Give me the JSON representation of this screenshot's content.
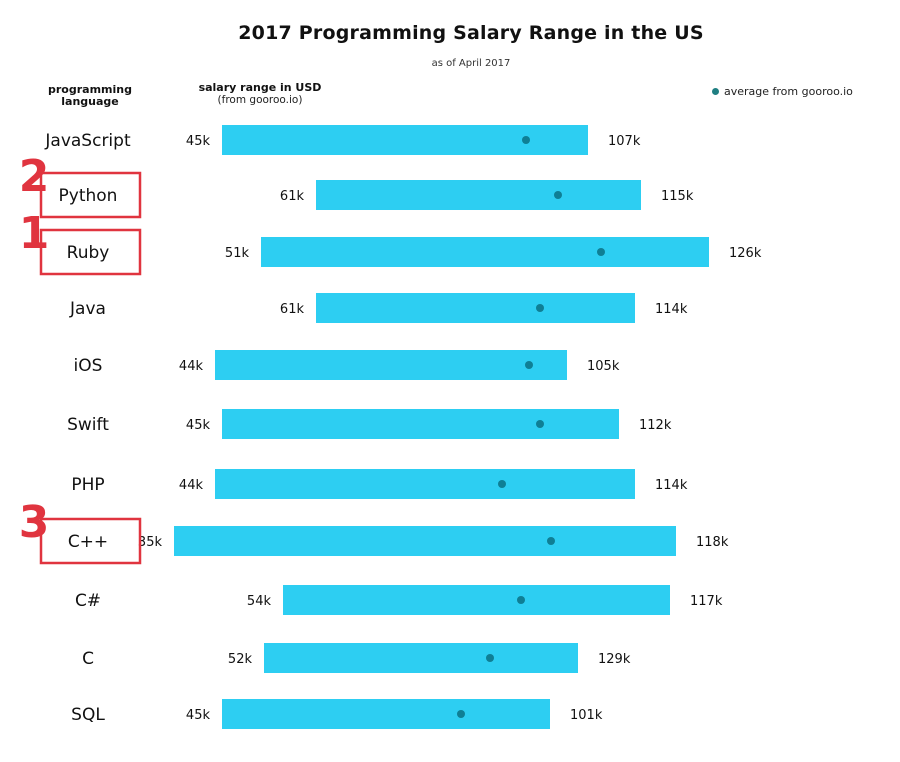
{
  "chart_data": {
    "type": "bar",
    "subtype": "range (floating horizontal bars with average dot)",
    "title": "2017 Programming Salary Range in the US",
    "subtitle": "as of April 2017",
    "column_headers": {
      "language": [
        "programming",
        "language"
      ],
      "salary": [
        "salary range in USD",
        "(from gooroo.io)"
      ]
    },
    "legend": {
      "label": "average from gooroo.io",
      "position": "top-right"
    },
    "units": "USD (thousands)",
    "categories": [
      "JavaScript",
      "Python",
      "Ruby",
      "Java",
      "iOS",
      "Swift",
      "PHP",
      "C++",
      "C#",
      "C",
      "SQL"
    ],
    "series": [
      {
        "name": "min",
        "values": [
          45,
          61,
          51,
          61,
          44,
          45,
          44,
          35,
          54,
          52,
          45
        ]
      },
      {
        "name": "max",
        "values": [
          107,
          115,
          126,
          114,
          105,
          112,
          114,
          118,
          117,
          129,
          101
        ]
      }
    ],
    "min_labels": [
      "45k",
      "61k",
      "51k",
      "61k",
      "44k",
      "45k",
      "44k",
      "35k",
      "54k",
      "52k",
      "45k"
    ],
    "max_labels": [
      "107k",
      "115k",
      "126k",
      "114k",
      "105k",
      "112k",
      "114k",
      "118k",
      "117k",
      "129k",
      "101k"
    ],
    "grid": false,
    "xlabel": "",
    "ylabel": ""
  },
  "annotations": [
    {
      "rank": "2",
      "category": "Python"
    },
    {
      "rank": "1",
      "category": "Ruby"
    },
    {
      "rank": "3",
      "category": "C++"
    }
  ],
  "colors": {
    "bar": "#2dcef2",
    "average_dot": "#0f7f95",
    "legend_dot": "#1f7f82",
    "annotation": "#e0343f"
  }
}
